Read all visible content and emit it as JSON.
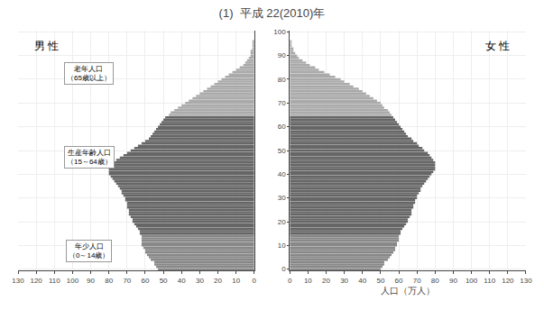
{
  "chart_data": {
    "type": "bar",
    "orientation": "horizontal",
    "title": "(1)  平成 22(2010)年",
    "xlabel": "人口（万人）",
    "categories": [
      0,
      1,
      2,
      3,
      4,
      5,
      6,
      7,
      8,
      9,
      10,
      11,
      12,
      13,
      14,
      15,
      16,
      17,
      18,
      19,
      20,
      21,
      22,
      23,
      24,
      25,
      26,
      27,
      28,
      29,
      30,
      31,
      32,
      33,
      34,
      35,
      36,
      37,
      38,
      39,
      40,
      41,
      42,
      43,
      44,
      45,
      46,
      47,
      48,
      49,
      50,
      51,
      52,
      53,
      54,
      55,
      56,
      57,
      58,
      59,
      60,
      61,
      62,
      63,
      64,
      65,
      66,
      67,
      68,
      69,
      70,
      71,
      72,
      73,
      74,
      75,
      76,
      77,
      78,
      79,
      80,
      81,
      82,
      83,
      84,
      85,
      86,
      87,
      88,
      89,
      90,
      91,
      92,
      93,
      94,
      95,
      96,
      97,
      98,
      99,
      100
    ],
    "colors": [
      "#888888",
      "#888888",
      "#888888",
      "#888888",
      "#888888",
      "#888888",
      "#888888",
      "#888888",
      "#888888",
      "#888888",
      "#888888",
      "#888888",
      "#888888",
      "#888888",
      "#888888",
      "#666666",
      "#666666",
      "#666666",
      "#666666",
      "#666666",
      "#666666",
      "#666666",
      "#666666",
      "#666666",
      "#666666",
      "#666666",
      "#666666",
      "#666666",
      "#666666",
      "#666666",
      "#666666",
      "#666666",
      "#666666",
      "#666666",
      "#666666",
      "#666666",
      "#666666",
      "#666666",
      "#666666",
      "#666666",
      "#666666",
      "#666666",
      "#666666",
      "#666666",
      "#666666",
      "#666666",
      "#666666",
      "#666666",
      "#666666",
      "#666666",
      "#666666",
      "#666666",
      "#666666",
      "#666666",
      "#666666",
      "#666666",
      "#666666",
      "#666666",
      "#666666",
      "#666666",
      "#666666",
      "#666666",
      "#666666",
      "#666666",
      "#666666",
      "#aaaaaa",
      "#aaaaaa",
      "#aaaaaa",
      "#aaaaaa",
      "#aaaaaa",
      "#aaaaaa",
      "#aaaaaa",
      "#aaaaaa",
      "#aaaaaa",
      "#aaaaaa",
      "#aaaaaa",
      "#aaaaaa",
      "#aaaaaa",
      "#aaaaaa",
      "#aaaaaa",
      "#aaaaaa",
      "#aaaaaa",
      "#aaaaaa",
      "#aaaaaa",
      "#aaaaaa",
      "#aaaaaa",
      "#aaaaaa",
      "#aaaaaa",
      "#aaaaaa",
      "#aaaaaa",
      "#aaaaaa",
      "#aaaaaa",
      "#aaaaaa",
      "#aaaaaa",
      "#aaaaaa",
      "#aaaaaa",
      "#aaaaaa",
      "#aaaaaa",
      "#aaaaaa",
      "#aaaaaa",
      "#aaaaaa"
    ],
    "series": [
      {
        "name": "男 性",
        "values": [
          53,
          54,
          55,
          55,
          57,
          58,
          59,
          60,
          60,
          61,
          62,
          62,
          62,
          62,
          62,
          63,
          63,
          64,
          65,
          66,
          67,
          67,
          68,
          69,
          69,
          69,
          70,
          70,
          70,
          71,
          71,
          72,
          73,
          73,
          74,
          75,
          76,
          77,
          78,
          79,
          80,
          80,
          80,
          79,
          78,
          77,
          76,
          74,
          72,
          70,
          68,
          66,
          64,
          62,
          60,
          58,
          57,
          56,
          55,
          54,
          53,
          52,
          51,
          50,
          49,
          47,
          46,
          44,
          42,
          40,
          38,
          36,
          34,
          32,
          30,
          28,
          26,
          24,
          22,
          20,
          18,
          16,
          14,
          12,
          10,
          8,
          6,
          5,
          4,
          3,
          2,
          2,
          2,
          1,
          1,
          1,
          1,
          0,
          0,
          0,
          0
        ]
      },
      {
        "name": "女 性",
        "values": [
          50,
          51,
          52,
          52,
          54,
          55,
          56,
          57,
          58,
          58,
          59,
          59,
          60,
          60,
          60,
          61,
          61,
          62,
          63,
          64,
          65,
          65,
          66,
          67,
          67,
          67,
          68,
          68,
          69,
          69,
          70,
          70,
          71,
          72,
          72,
          73,
          74,
          75,
          76,
          77,
          78,
          79,
          80,
          80,
          80,
          80,
          79,
          78,
          77,
          76,
          74,
          73,
          71,
          70,
          68,
          67,
          65,
          64,
          63,
          62,
          61,
          60,
          59,
          58,
          57,
          56,
          55,
          54,
          52,
          51,
          50,
          48,
          46,
          44,
          42,
          40,
          38,
          35,
          33,
          30,
          28,
          25,
          22,
          19,
          16,
          14,
          11,
          9,
          7,
          5,
          4,
          3,
          2,
          2,
          1,
          1,
          1,
          0,
          0,
          0,
          0
        ]
      }
    ],
    "annotations": [
      "老年人口\n（65歳以上）",
      "生産年齢人口\n（15～64歳）",
      "年少人口\n（0～14歳）"
    ],
    "xlim": [
      0,
      130
    ],
    "xticks": [
      0,
      10,
      20,
      30,
      40,
      50,
      60,
      70,
      80,
      90,
      100,
      110,
      120,
      130
    ],
    "ylim": [
      -0.5,
      100.5
    ],
    "yticks": [
      0,
      10,
      20,
      30,
      40,
      50,
      60,
      70,
      80,
      90,
      100
    ],
    "grid": true
  }
}
